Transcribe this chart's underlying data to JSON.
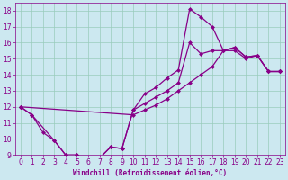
{
  "xlabel": "Windchill (Refroidissement éolien,°C)",
  "bg_color": "#cce8f0",
  "grid_color": "#99ccbb",
  "line_color": "#880088",
  "markersize": 2.5,
  "linewidth": 0.9,
  "xlim": [
    -0.5,
    23.5
  ],
  "ylim": [
    9,
    18.5
  ],
  "xticks": [
    0,
    1,
    2,
    3,
    4,
    5,
    6,
    7,
    8,
    9,
    10,
    11,
    12,
    13,
    14,
    15,
    16,
    17,
    18,
    19,
    20,
    21,
    22,
    23
  ],
  "yticks": [
    9,
    10,
    11,
    12,
    13,
    14,
    15,
    16,
    17,
    18
  ],
  "tick_fontsize": 5.5,
  "xlabel_fontsize": 5.5,
  "series1_x": [
    0,
    1,
    2,
    3,
    4,
    5,
    6,
    7,
    8,
    9,
    10,
    11,
    12,
    13,
    14,
    15,
    16,
    17,
    18,
    19,
    20,
    21,
    22,
    23
  ],
  "series1_y": [
    12.0,
    11.5,
    10.4,
    9.9,
    9.0,
    9.0,
    8.8,
    8.8,
    9.5,
    9.4,
    11.8,
    12.8,
    13.2,
    13.8,
    14.3,
    18.1,
    17.6,
    17.0,
    15.5,
    15.7,
    15.1,
    15.2,
    14.2,
    14.2
  ],
  "series2_x": [
    0,
    1,
    3,
    4,
    5,
    6,
    7,
    8,
    9,
    10,
    11,
    12,
    13,
    14,
    15,
    16,
    17,
    18,
    19,
    20,
    21,
    22,
    23
  ],
  "series2_y": [
    12.0,
    11.5,
    9.9,
    9.0,
    9.0,
    8.8,
    8.8,
    9.5,
    9.4,
    11.8,
    12.2,
    12.6,
    13.0,
    13.5,
    16.0,
    15.3,
    15.5,
    15.5,
    15.7,
    15.1,
    15.2,
    14.2,
    14.2
  ],
  "series3_x": [
    0,
    10,
    11,
    12,
    13,
    14,
    15,
    16,
    17,
    18,
    19,
    20,
    21,
    22,
    23
  ],
  "series3_y": [
    12.0,
    11.5,
    11.8,
    12.1,
    12.5,
    13.0,
    13.5,
    14.0,
    14.5,
    15.5,
    15.5,
    15.0,
    15.2,
    14.2,
    14.2
  ]
}
